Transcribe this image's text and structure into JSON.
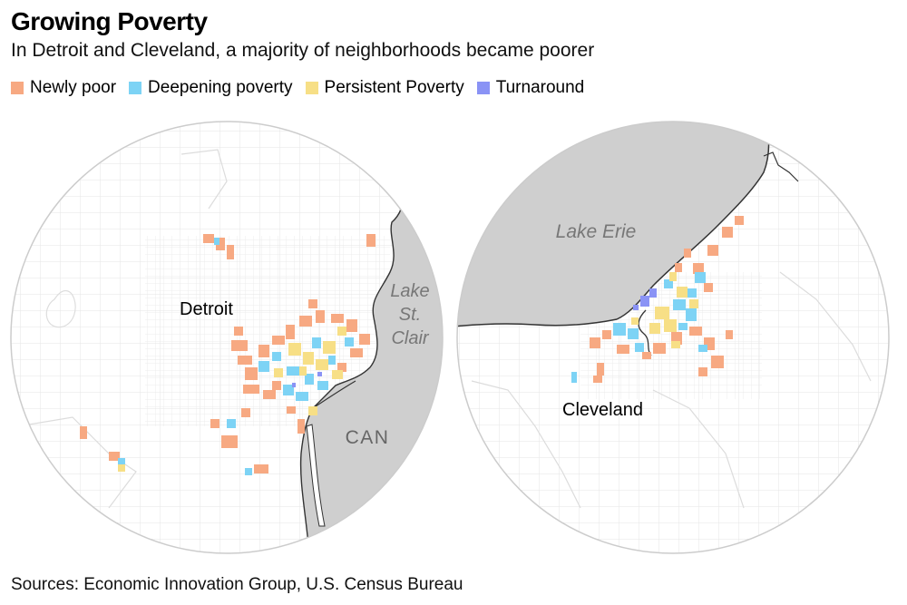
{
  "title": "Growing Poverty",
  "subtitle": "In Detroit and Cleveland, a majority of neighborhoods became poorer",
  "legend": [
    {
      "label": "Newly poor",
      "color": "#F7A982"
    },
    {
      "label": "Deepening poverty",
      "color": "#7DD3F5"
    },
    {
      "label": "Persistent Poverty",
      "color": "#F7DF86"
    },
    {
      "label": "Turnaround",
      "color": "#8A93F5"
    }
  ],
  "maps": {
    "detroit": {
      "city_label": "Detroit",
      "lake_label_lines": [
        "Lake",
        "St.",
        "Clair"
      ],
      "country_label": "CAN"
    },
    "cleveland": {
      "city_label": "Cleveland",
      "lake_label": "Lake Erie"
    }
  },
  "source": "Sources: Economic Innovation Group, U.S. Census Bureau"
}
